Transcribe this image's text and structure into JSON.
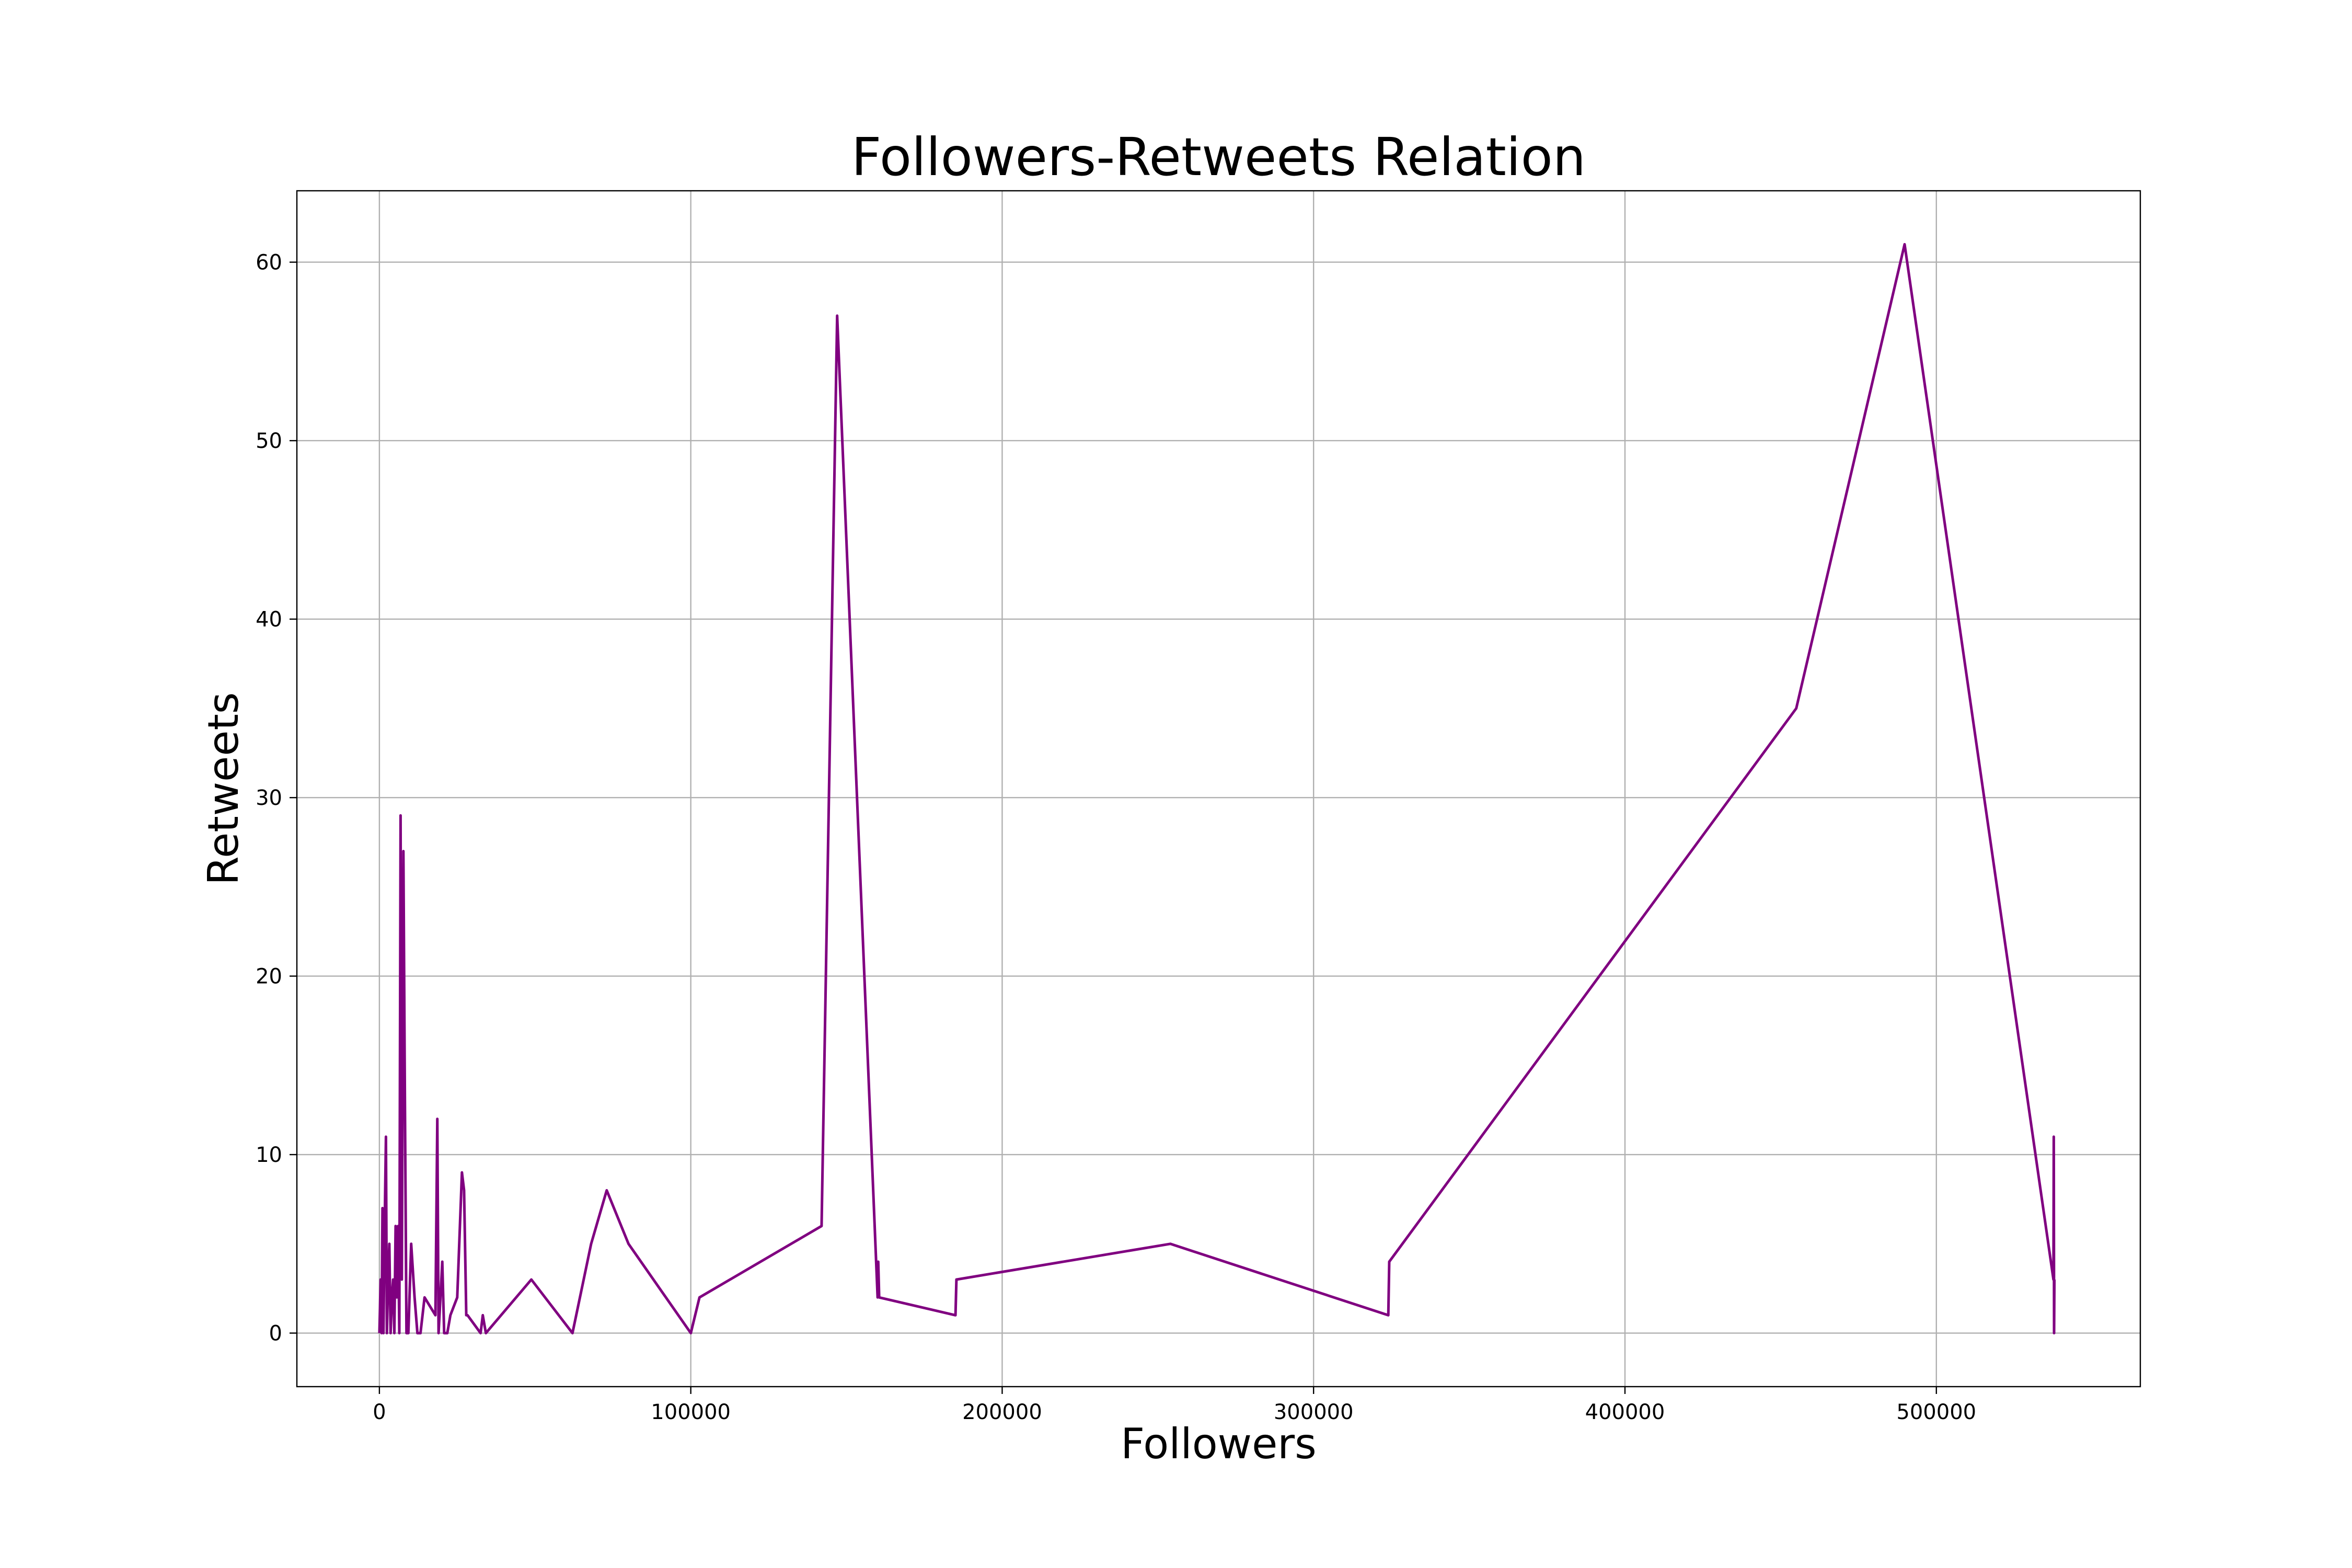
{
  "chart_data": {
    "type": "line",
    "title": "Followers-Retweets Relation",
    "xlabel": "Followers",
    "ylabel": "Retweets",
    "xlim": [
      -26500,
      565500
    ],
    "ylim": [
      -3,
      64
    ],
    "xticks": [
      0,
      100000,
      200000,
      300000,
      400000,
      500000
    ],
    "xtick_labels": [
      "0",
      "100000",
      "200000",
      "300000",
      "400000",
      "500000"
    ],
    "yticks": [
      0,
      10,
      20,
      30,
      40,
      50,
      60
    ],
    "ytick_labels": [
      "0",
      "10",
      "20",
      "30",
      "40",
      "50",
      "60"
    ],
    "grid": true,
    "legend": "none",
    "series_color": "#800080",
    "series": [
      {
        "x": [
          0,
          400,
          700,
          1000,
          1300,
          1700,
          2100,
          2400,
          2800,
          3200,
          3600,
          4000,
          4400,
          4800,
          5200,
          5600,
          6000,
          6400,
          6800,
          7200,
          7700,
          8200,
          8700,
          9300,
          10200,
          11300,
          12200,
          13200,
          14500,
          18000,
          18600,
          19000,
          19600,
          20200,
          20800,
          21800,
          22800,
          25000,
          26500,
          27200,
          27900,
          28300,
          32500,
          33200,
          34200,
          48800,
          62000,
          68000,
          73000,
          80000,
          100000,
          102800,
          142000,
          147000,
          160000,
          160200,
          160500,
          185000,
          185300,
          254000,
          324000,
          324300,
          455000,
          489800,
          537600,
          537700,
          537800,
          537900
        ],
        "y": [
          0,
          3,
          0,
          7,
          0,
          6,
          11,
          0,
          3,
          5,
          0,
          2,
          3,
          0,
          6,
          2,
          6,
          0,
          29,
          3,
          27,
          13,
          0,
          0,
          5,
          2,
          0,
          0,
          2,
          1,
          12,
          0,
          2,
          4,
          0,
          0,
          1,
          2,
          9,
          8,
          1,
          1,
          0,
          1,
          0,
          3,
          0,
          5,
          8,
          5,
          0,
          2,
          6,
          57,
          2,
          4,
          2,
          1,
          3,
          5,
          1,
          4,
          35,
          61,
          3,
          11,
          0,
          3
        ]
      }
    ]
  }
}
